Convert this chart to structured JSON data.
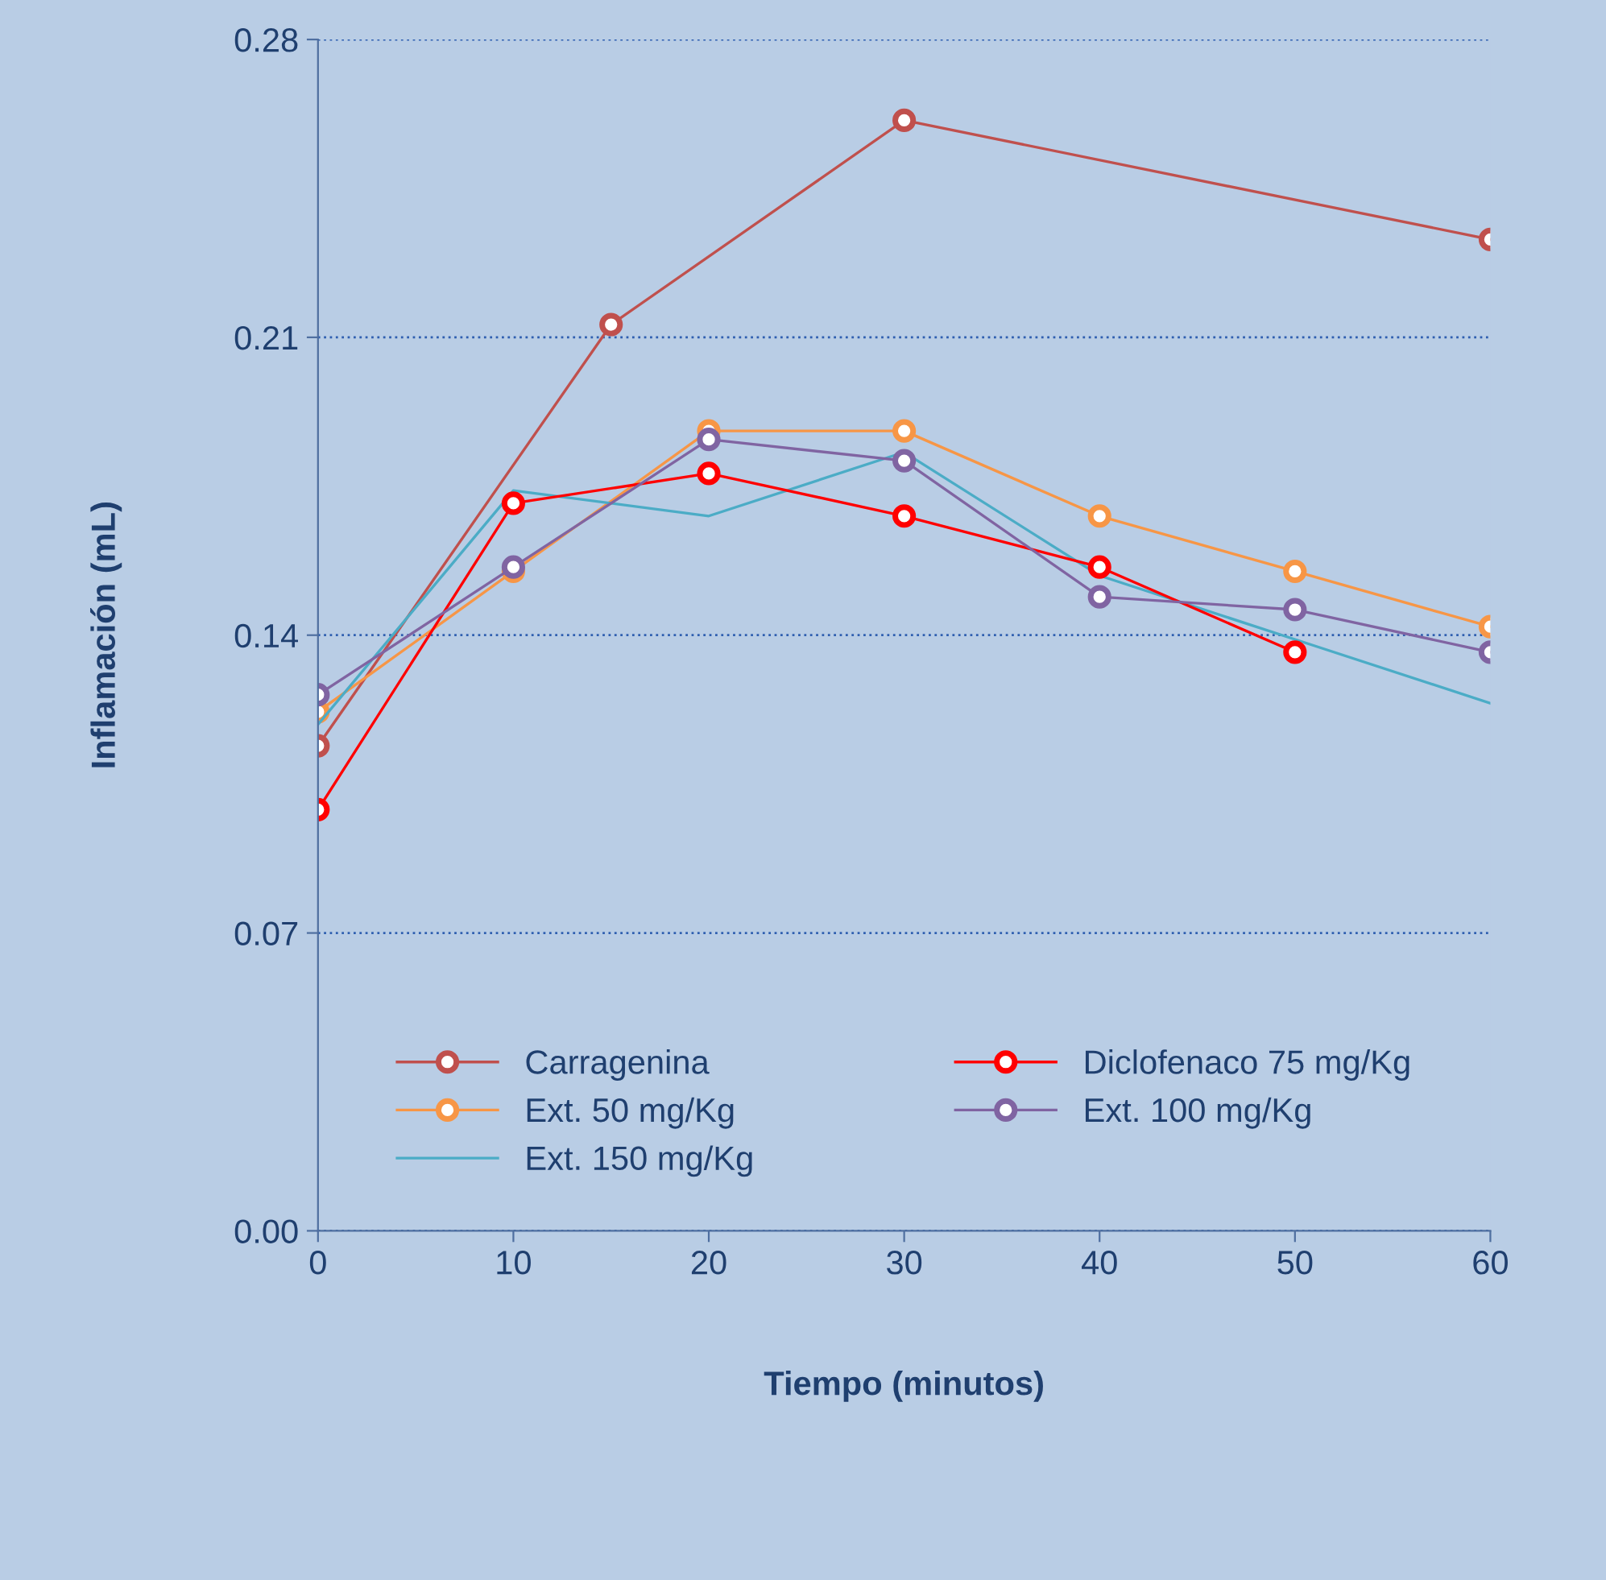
{
  "chart_data": {
    "type": "line",
    "xlabel": "Tiempo (minutos)",
    "ylabel": "Inflamación (mL)",
    "xlim": [
      0,
      60
    ],
    "xticks": [
      0,
      10,
      20,
      30,
      40,
      50,
      60
    ],
    "ylim": [
      0,
      0.28
    ],
    "yticks": [
      {
        "value": 0,
        "label": "0.00"
      },
      {
        "value": 0.07,
        "label": "0.07"
      },
      {
        "value": 0.14,
        "label": "0.14"
      },
      {
        "value": 0.21,
        "label": "0.21"
      },
      {
        "value": 0.28,
        "label": "0.28"
      }
    ],
    "grid": "y",
    "legend": "bottom",
    "series": [
      {
        "name": "Carragenina",
        "color": "#c0504d",
        "marker": "circle",
        "x": [
          0,
          15,
          30,
          60
        ],
        "values": [
          0.114,
          0.213,
          0.261,
          0.233
        ]
      },
      {
        "name": "Ext. 50 mg/Kg",
        "color": "#f79646",
        "marker": "circle",
        "x": [
          0,
          10,
          20,
          30,
          40,
          50,
          60
        ],
        "values": [
          0.122,
          0.155,
          0.188,
          0.188,
          0.168,
          0.155,
          0.142
        ]
      },
      {
        "name": "Ext. 150 mg/Kg",
        "color": "#4bacc6",
        "marker": "none",
        "x": [
          0,
          10,
          20,
          30,
          40,
          50,
          60
        ],
        "values": [
          0.119,
          0.174,
          0.168,
          0.183,
          0.154,
          0.139,
          0.124
        ]
      },
      {
        "name": "Diclofenaco 75 mg/Kg",
        "color": "#ff0000",
        "marker": "circle",
        "x": [
          0,
          10,
          20,
          30,
          40,
          50
        ],
        "values": [
          0.099,
          0.171,
          0.178,
          0.168,
          0.156,
          0.136
        ]
      },
      {
        "name": "Ext. 100 mg/Kg",
        "color": "#8064a2",
        "marker": "circle",
        "x": [
          0,
          10,
          20,
          30,
          40,
          50,
          60
        ],
        "values": [
          0.126,
          0.156,
          0.186,
          0.181,
          0.149,
          0.146,
          0.136
        ]
      }
    ]
  }
}
